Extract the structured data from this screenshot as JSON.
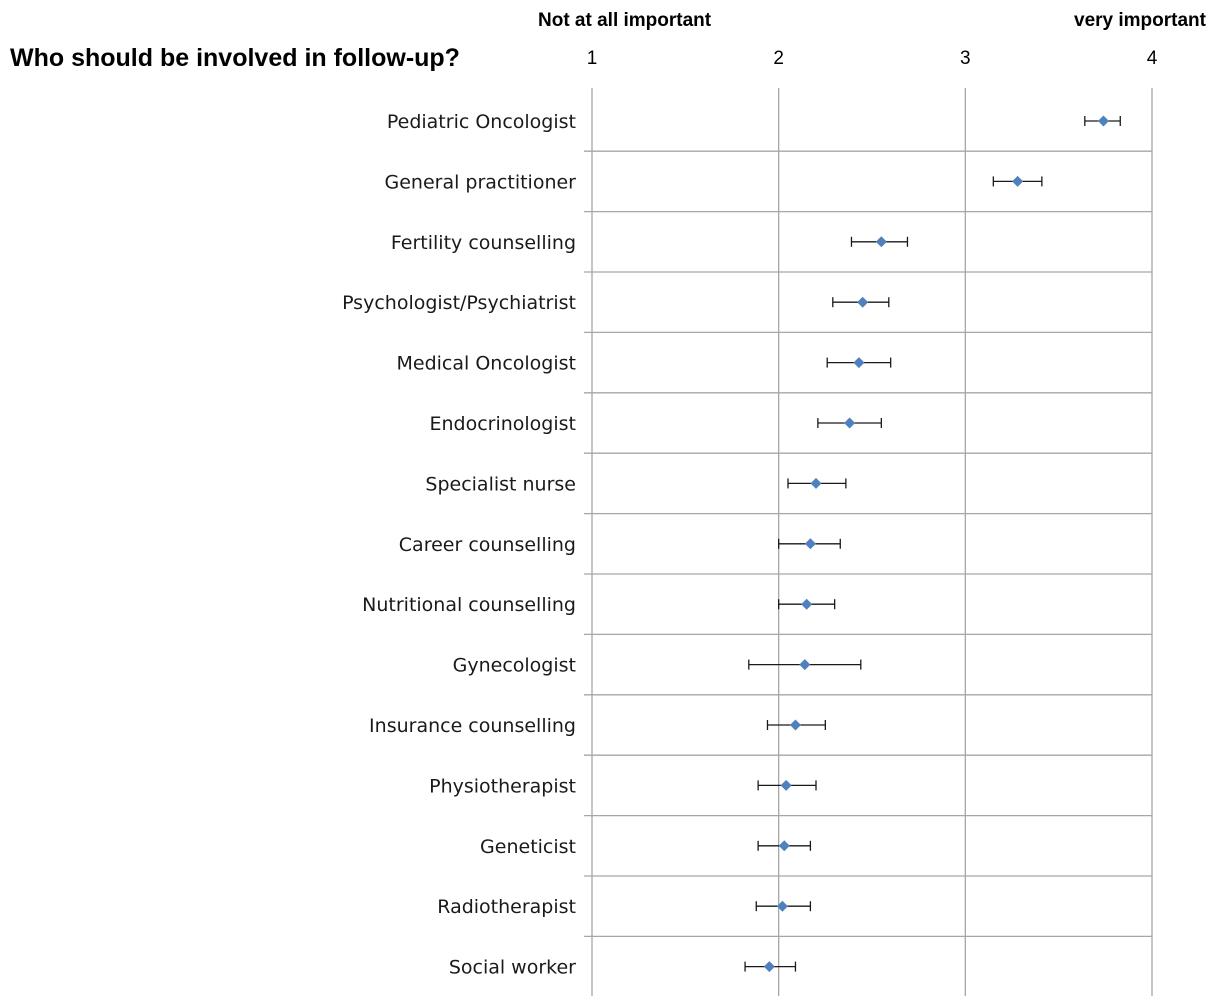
{
  "title": "Who should be involved in follow-up?",
  "scale_anchors": {
    "low": "Not at all important",
    "high": "very important"
  },
  "colors": {
    "point": "#4f81bd",
    "grid": "#a6a6a6",
    "error_bar": "#1a1a1a"
  },
  "chart_data": {
    "type": "scatter",
    "title": "Who should be involved in follow-up?",
    "orientation": "horizontal",
    "x_ticks": [
      "1",
      "2",
      "3",
      "4"
    ],
    "xlim": [
      1,
      4
    ],
    "grid": true,
    "error_bars": true,
    "categories": [
      "Pediatric Oncologist",
      "General practitioner",
      "Fertility counselling",
      "Psychologist/Psychiatrist",
      "Medical Oncologist",
      "Endocrinologist",
      "Specialist nurse",
      "Career counselling",
      "Nutritional counselling",
      "Gynecologist",
      "Insurance counselling",
      "Physiotherapist",
      "Geneticist",
      "Radiotherapist",
      "Social worker"
    ],
    "values": [
      3.74,
      3.28,
      2.55,
      2.45,
      2.43,
      2.38,
      2.2,
      2.17,
      2.15,
      2.14,
      2.09,
      2.04,
      2.03,
      2.02,
      1.95
    ],
    "lower": [
      3.64,
      3.15,
      2.39,
      2.29,
      2.26,
      2.21,
      2.05,
      2.0,
      2.0,
      1.84,
      1.94,
      1.89,
      1.89,
      1.88,
      1.82
    ],
    "upper": [
      3.83,
      3.41,
      2.69,
      2.59,
      2.6,
      2.55,
      2.36,
      2.33,
      2.3,
      2.44,
      2.25,
      2.2,
      2.17,
      2.17,
      2.09
    ]
  }
}
